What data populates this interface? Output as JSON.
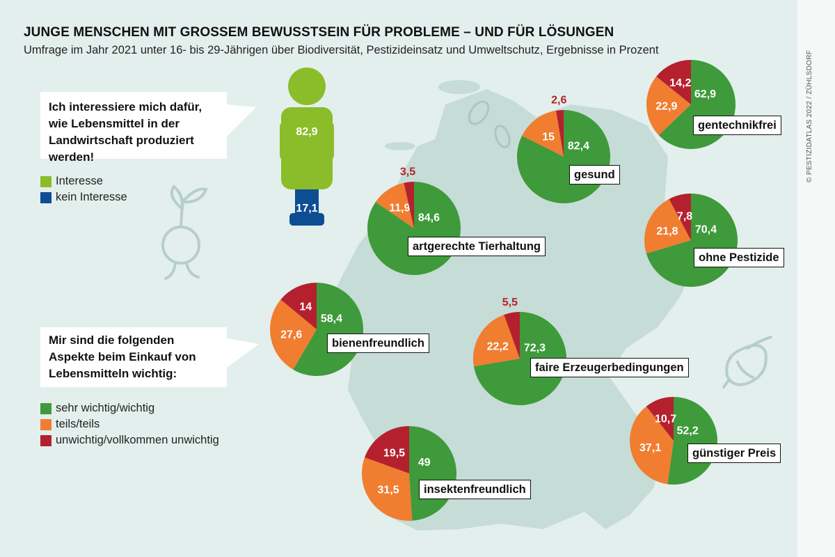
{
  "title": "JUNGE MENSCHEN MIT GROSSEM BEWUSSTSEIN FÜR PROBLEME – UND FÜR LÖSUNGEN",
  "subtitle": "Umfrage im Jahr 2021 unter 16- bis 29-Jährigen über Biodiversität, Pestizideinsatz und Umweltschutz, Ergebnisse in Prozent",
  "credit": "© PESTIZIDATLAS 2022 / ZÜHLSDORF",
  "colors": {
    "green": "#3e9a3b",
    "orange": "#f07d30",
    "red": "#b5202e",
    "lime": "#8bbd2a",
    "blue": "#0d4d94",
    "background": "#e3efec",
    "map": "#c6dcd6"
  },
  "interest": {
    "question": "Ich interessiere mich dafür, wie Lebensmittel in der Landwirtschaft produziert werden!",
    "legend": [
      "Interesse",
      "kein Interesse"
    ],
    "values": {
      "interesse": "82,9",
      "kein_interesse": "17,1"
    }
  },
  "purchase": {
    "question": "Mir sind die folgenden Aspekte beim Einkauf von Lebensmitteln wichtig:",
    "legend": [
      "sehr wichtig/wichtig",
      "teils/teils",
      "unwichtig/vollkommen unwichtig"
    ]
  },
  "chart_data": [
    {
      "type": "bar",
      "title": "Ich interessiere mich dafür, wie Lebensmittel in der Landwirtschaft produziert werden!",
      "categories": [
        "Interesse",
        "kein Interesse"
      ],
      "values": [
        82.9,
        17.1
      ]
    },
    {
      "type": "pie",
      "categories": [
        "sehr wichtig/wichtig",
        "teils/teils",
        "unwichtig/vollkommen unwichtig"
      ],
      "pies": [
        {
          "label": "gesund",
          "values": [
            82.4,
            15,
            2.6
          ],
          "display": [
            "82,4",
            "15",
            "2,6"
          ]
        },
        {
          "label": "gentechnikfrei",
          "values": [
            62.9,
            22.9,
            14.2
          ],
          "display": [
            "62,9",
            "22,9",
            "14,2"
          ]
        },
        {
          "label": "artgerechte Tierhaltung",
          "values": [
            84.6,
            11.9,
            3.5
          ],
          "display": [
            "84,6",
            "11,9",
            "3,5"
          ]
        },
        {
          "label": "ohne Pestizide",
          "values": [
            70.4,
            21.8,
            7.8
          ],
          "display": [
            "70,4",
            "21,8",
            "7,8"
          ]
        },
        {
          "label": "bienenfreundlich",
          "values": [
            58.4,
            27.6,
            14
          ],
          "display": [
            "58,4",
            "27,6",
            "14"
          ]
        },
        {
          "label": "faire Erzeugerbedingungen",
          "values": [
            72.3,
            22.2,
            5.5
          ],
          "display": [
            "72,3",
            "22,2",
            "5,5"
          ]
        },
        {
          "label": "günstiger Preis",
          "values": [
            52.2,
            37.1,
            10.7
          ],
          "display": [
            "52,2",
            "37,1",
            "10,7"
          ]
        },
        {
          "label": "insektenfreundlich",
          "values": [
            49,
            31.5,
            19.5
          ],
          "display": [
            "49",
            "31,5",
            "19,5"
          ]
        }
      ]
    }
  ]
}
